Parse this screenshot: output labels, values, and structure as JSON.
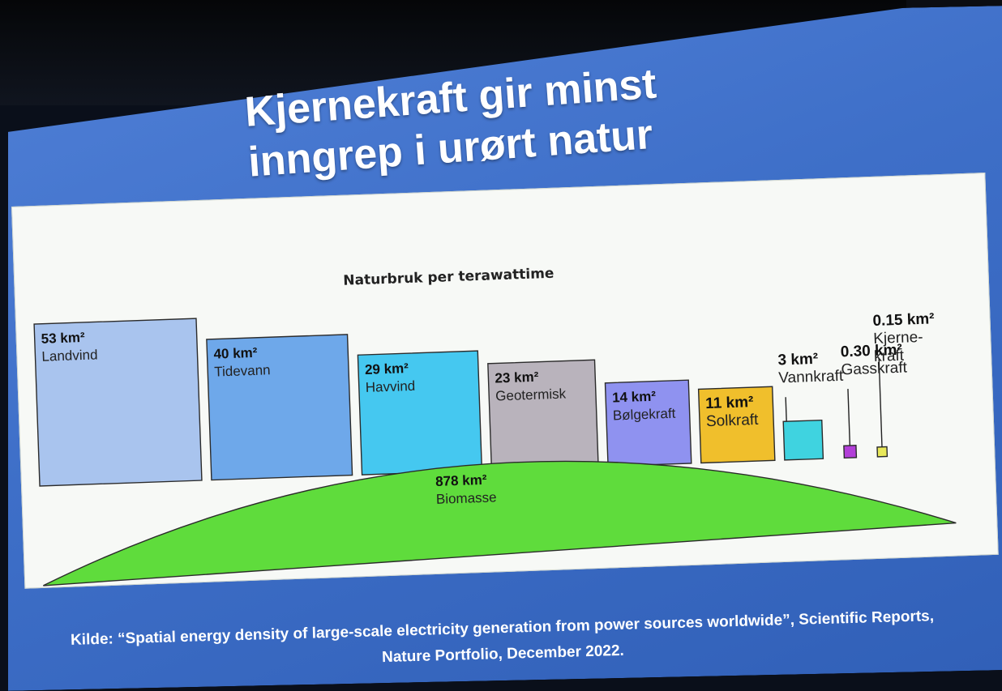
{
  "slide": {
    "title_line1": "Kjernekraft gir minst",
    "title_line2": "inngrep i urørt natur",
    "source_line1": "Kilde: “Spatial energy density of large-scale electricity generation from power sources worldwide”, Scientific Reports,",
    "source_line2": "Nature Portfolio, December 2022."
  },
  "chart_data": {
    "type": "bar",
    "title": "Naturbruk per terawattime",
    "unit": "km²",
    "categories": [
      "Landvind",
      "Tidevann",
      "Havvind",
      "Geotermisk",
      "Bølgekraft",
      "Solkraft",
      "Vannkraft",
      "Gasskraft",
      "Kjernekraft"
    ],
    "category_labels": [
      "Landvind",
      "Tidevann",
      "Havvind",
      "Geotermisk",
      "Bølgekraft",
      "Solkraft",
      "Vannkraft",
      "Gasskraft",
      "Kjerne-\nkraft"
    ],
    "value_labels": [
      "53 km²",
      "40 km²",
      "29 km²",
      "23 km²",
      "14 km²",
      "11 km²",
      "3 km²",
      "0.30 km²",
      "0.15 km²"
    ],
    "values": [
      53,
      40,
      29,
      23,
      14,
      11,
      3,
      0.3,
      0.15
    ],
    "colors": [
      "#a9c4ee",
      "#6ea8ea",
      "#45c8f0",
      "#b9b3bc",
      "#8f92f0",
      "#f0bf2c",
      "#3fd3e0",
      "#b23fd8",
      "#e8e85a"
    ],
    "biomass": {
      "label": "Biomasse",
      "value_label": "878 km²",
      "value": 878,
      "color": "#5fdc3c"
    }
  }
}
